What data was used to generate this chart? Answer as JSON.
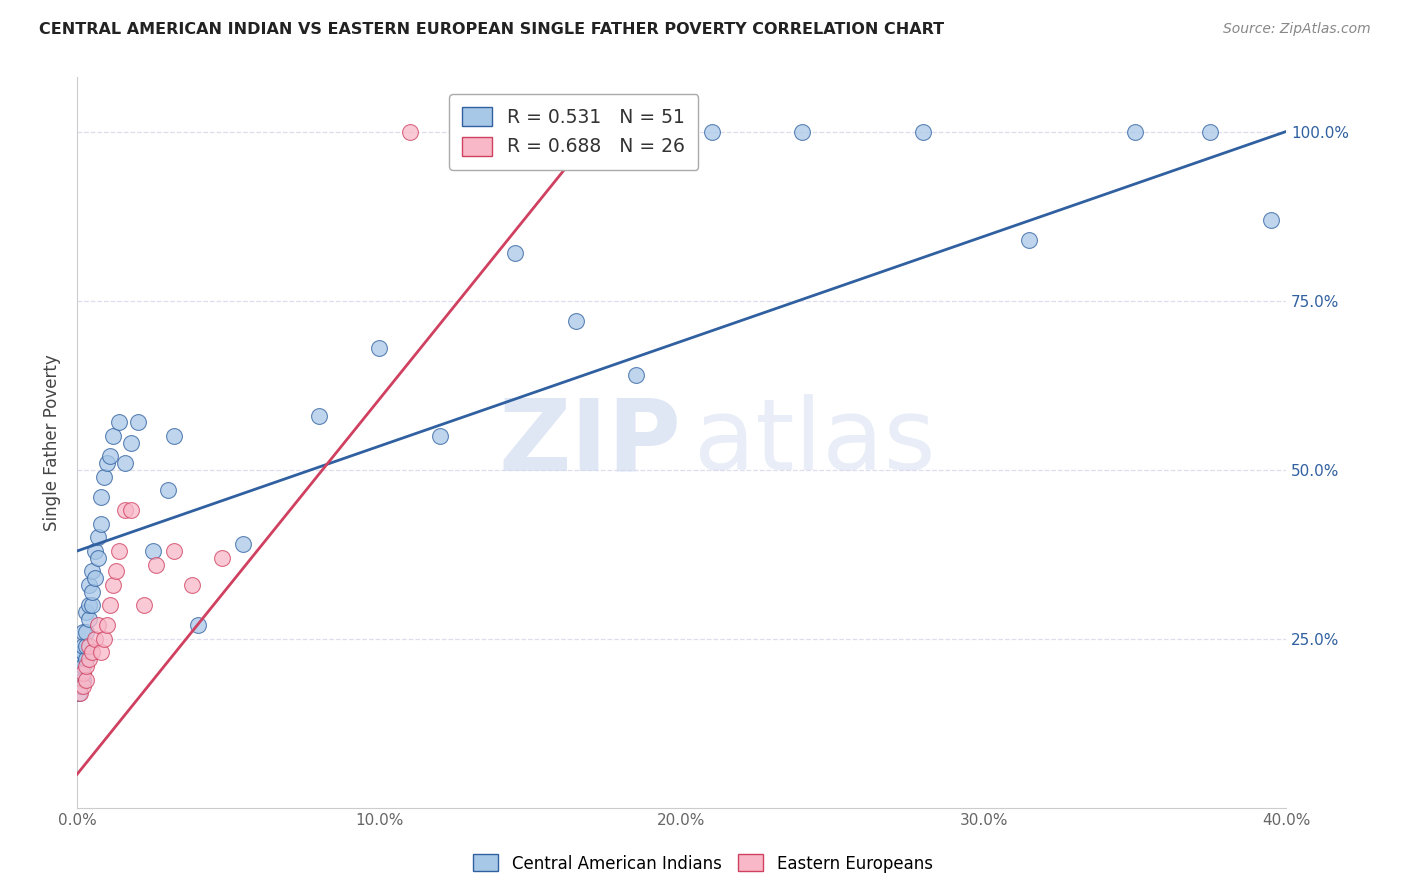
{
  "title": "CENTRAL AMERICAN INDIAN VS EASTERN EUROPEAN SINGLE FATHER POVERTY CORRELATION CHART",
  "source": "Source: ZipAtlas.com",
  "ylabel": "Single Father Poverty",
  "xlim": [
    0.0,
    0.4
  ],
  "ylim": [
    0.0,
    1.08
  ],
  "blue_r": 0.531,
  "blue_n": 51,
  "pink_r": 0.688,
  "pink_n": 26,
  "blue_color": "#a8c8e8",
  "pink_color": "#f8b8c8",
  "blue_line_color": "#3060a0",
  "pink_line_color": "#d04060",
  "background_color": "#ffffff",
  "grid_color": "#ddddee",
  "blue_x": [
    0.0005,
    0.001,
    0.001,
    0.001,
    0.002,
    0.002,
    0.002,
    0.002,
    0.002,
    0.003,
    0.003,
    0.003,
    0.003,
    0.004,
    0.004,
    0.004,
    0.005,
    0.005,
    0.005,
    0.006,
    0.006,
    0.007,
    0.007,
    0.008,
    0.008,
    0.009,
    0.01,
    0.011,
    0.012,
    0.014,
    0.016,
    0.018,
    0.02,
    0.025,
    0.03,
    0.032,
    0.04,
    0.055,
    0.08,
    0.1,
    0.12,
    0.145,
    0.165,
    0.185,
    0.21,
    0.24,
    0.28,
    0.315,
    0.35,
    0.375,
    0.395
  ],
  "blue_y": [
    0.17,
    0.18,
    0.2,
    0.22,
    0.19,
    0.21,
    0.23,
    0.24,
    0.26,
    0.22,
    0.24,
    0.26,
    0.29,
    0.28,
    0.3,
    0.33,
    0.3,
    0.32,
    0.35,
    0.34,
    0.38,
    0.37,
    0.4,
    0.42,
    0.46,
    0.49,
    0.51,
    0.52,
    0.55,
    0.57,
    0.51,
    0.54,
    0.57,
    0.38,
    0.47,
    0.55,
    0.27,
    0.39,
    0.58,
    0.68,
    0.55,
    0.82,
    0.72,
    0.64,
    1.0,
    1.0,
    1.0,
    0.84,
    1.0,
    1.0,
    0.87
  ],
  "pink_x": [
    0.001,
    0.002,
    0.002,
    0.003,
    0.003,
    0.004,
    0.004,
    0.005,
    0.006,
    0.007,
    0.008,
    0.009,
    0.01,
    0.011,
    0.012,
    0.013,
    0.014,
    0.016,
    0.018,
    0.022,
    0.026,
    0.032,
    0.038,
    0.048,
    0.11,
    0.14
  ],
  "pink_y": [
    0.17,
    0.18,
    0.2,
    0.19,
    0.21,
    0.22,
    0.24,
    0.23,
    0.25,
    0.27,
    0.23,
    0.25,
    0.27,
    0.3,
    0.33,
    0.35,
    0.38,
    0.44,
    0.44,
    0.3,
    0.36,
    0.38,
    0.33,
    0.37,
    1.0,
    1.0
  ],
  "blue_line_x0": 0.0,
  "blue_line_x1": 0.4,
  "blue_line_y0": 0.38,
  "blue_line_y1": 1.0,
  "pink_line_x0": 0.0,
  "pink_line_x1": 0.175,
  "pink_line_y0": 0.05,
  "pink_line_y1": 1.02
}
